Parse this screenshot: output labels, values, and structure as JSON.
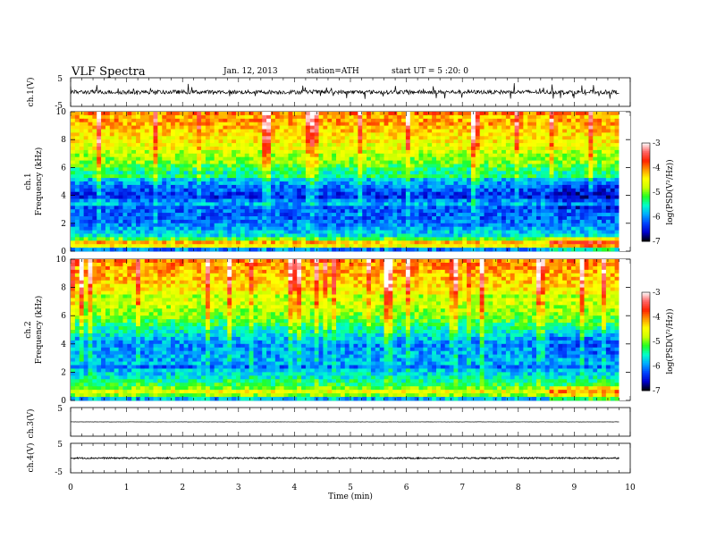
{
  "header": {
    "title": "VLF  Spectra",
    "date": "Jan. 12, 2013",
    "station": "station=ATH",
    "start": "start  UT  =   5  :20: 0"
  },
  "chart_data": [
    {
      "type": "line",
      "panel": "ch1-waveform",
      "ylabel": "ch.1(V)",
      "ylim": [
        -5,
        5
      ],
      "yticks": [
        "5",
        "-5"
      ],
      "xlim": [
        0,
        10
      ],
      "baseline": 0,
      "spread": 0.7
    },
    {
      "type": "heatmap",
      "panel": "ch1-spectrogram",
      "ylabel_top": "ch.1",
      "ylabel": "Frequency  (kHz)",
      "ylim": [
        0,
        10
      ],
      "yticks": [
        "0",
        "2",
        "4",
        "6",
        "8",
        "10"
      ],
      "xlim": [
        0,
        9.8
      ],
      "colorbar": {
        "label": "log(PSD(V²/Hz))",
        "range": [
          -7,
          -3
        ],
        "ticks": [
          "-3",
          "-4",
          "-5",
          "-6",
          "-7"
        ],
        "colors": [
          "#000000",
          "#0000cc",
          "#0044ff",
          "#00aaff",
          "#00ffcc",
          "#22ff22",
          "#ccff00",
          "#ffff00",
          "#ff9900",
          "#ff2200",
          "#ff6666",
          "#ffffff"
        ]
      },
      "frequency_profile_logpsd": [
        {
          "f": 0.0,
          "v": -6.8
        },
        {
          "f": 0.5,
          "v": -3.8
        },
        {
          "f": 1.0,
          "v": -5.6
        },
        {
          "f": 2.0,
          "v": -6.1
        },
        {
          "f": 3.0,
          "v": -6.2
        },
        {
          "f": 4.0,
          "v": -6.4
        },
        {
          "f": 5.0,
          "v": -5.9
        },
        {
          "f": 6.0,
          "v": -5.2
        },
        {
          "f": 7.0,
          "v": -4.8
        },
        {
          "f": 8.0,
          "v": -4.5
        },
        {
          "f": 9.0,
          "v": -4.2
        },
        {
          "f": 10.0,
          "v": -4.0
        }
      ]
    },
    {
      "type": "heatmap",
      "panel": "ch2-spectrogram",
      "ylabel_top": "ch.2",
      "ylabel": "Frequency  (kHz)",
      "ylim": [
        0,
        10
      ],
      "yticks": [
        "0",
        "2",
        "4",
        "6",
        "8",
        "10"
      ],
      "xlim": [
        0,
        9.8
      ],
      "colorbar": {
        "label": "log(PSD(V²/Hz))",
        "range": [
          -7,
          -3
        ],
        "ticks": [
          "-3",
          "-4",
          "-5",
          "-6",
          "-7"
        ],
        "colors": [
          "#000000",
          "#0000cc",
          "#0044ff",
          "#00aaff",
          "#00ffcc",
          "#22ff22",
          "#ccff00",
          "#ffff00",
          "#ff9900",
          "#ff2200",
          "#ff6666",
          "#ffffff"
        ]
      },
      "frequency_profile_logpsd": [
        {
          "f": 0.0,
          "v": -6.8
        },
        {
          "f": 0.5,
          "v": -4.4
        },
        {
          "f": 1.0,
          "v": -5.2
        },
        {
          "f": 2.0,
          "v": -5.8
        },
        {
          "f": 3.0,
          "v": -5.9
        },
        {
          "f": 4.0,
          "v": -6.0
        },
        {
          "f": 5.0,
          "v": -5.5
        },
        {
          "f": 6.0,
          "v": -5.0
        },
        {
          "f": 7.0,
          "v": -4.7
        },
        {
          "f": 8.0,
          "v": -4.4
        },
        {
          "f": 9.0,
          "v": -4.2
        },
        {
          "f": 10.0,
          "v": -4.0
        }
      ]
    },
    {
      "type": "line",
      "panel": "ch3-waveform",
      "ylabel": "ch.3(V)",
      "ylim": [
        -5,
        5
      ],
      "yticks": [
        "5"
      ],
      "xlim": [
        0,
        10
      ],
      "baseline": 0,
      "spread": 0.05
    },
    {
      "type": "line",
      "panel": "ch4-waveform",
      "ylabel": "ch.4(V)",
      "ylim": [
        -5,
        5
      ],
      "yticks": [
        "5",
        "-5"
      ],
      "xlim": [
        0,
        10
      ],
      "baseline": 0,
      "spread": 0.25
    }
  ],
  "x_axis": {
    "label": "Time  (min)",
    "ticks": [
      "0",
      "1",
      "2",
      "3",
      "4",
      "5",
      "6",
      "7",
      "8",
      "9",
      "10"
    ],
    "range": [
      0,
      10
    ]
  }
}
